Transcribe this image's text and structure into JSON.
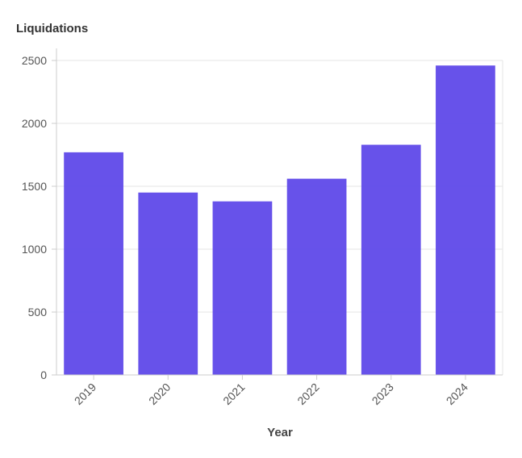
{
  "chart_data": {
    "type": "bar",
    "title": "Liquidations",
    "xlabel": "Year",
    "ylabel": "",
    "categories": [
      "2019",
      "2020",
      "2021",
      "2022",
      "2023",
      "2024"
    ],
    "series": [
      {
        "values": [
          1770,
          1450,
          1380,
          1560,
          1830,
          2460
        ]
      }
    ],
    "ylim": [
      0,
      2500
    ],
    "yticks": [
      0,
      500,
      1000,
      1500,
      2000,
      2500
    ],
    "grid": true,
    "legend": "none",
    "colors": {
      "bar": "#5b45e8",
      "grid": "#e6e6e6",
      "axis": "#cccccc"
    }
  }
}
